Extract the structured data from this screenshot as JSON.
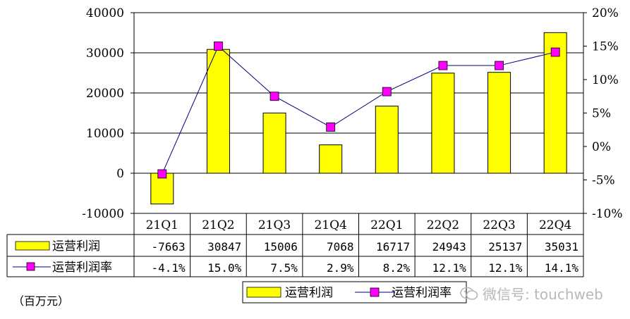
{
  "chart_data": {
    "type": "bar",
    "categories": [
      "21Q1",
      "21Q2",
      "21Q3",
      "21Q4",
      "22Q1",
      "22Q2",
      "22Q3",
      "22Q4"
    ],
    "series": [
      {
        "name": "运营利润",
        "kind": "bar",
        "axis": "left",
        "color": "#FFFF00",
        "values": [
          -7663,
          30847,
          15006,
          7068,
          16717,
          24943,
          25137,
          35031
        ],
        "table_values": [
          "-7663",
          "30847",
          "15006",
          "7068",
          "16717",
          "24943",
          "25137",
          "35031"
        ]
      },
      {
        "name": "运营利润率",
        "kind": "line",
        "axis": "right",
        "color": "#FF00FF",
        "line_color": "#000080",
        "values": [
          -4.1,
          15.0,
          7.5,
          2.9,
          8.2,
          12.1,
          12.1,
          14.1
        ],
        "table_values": [
          "-4.1%",
          "15.0%",
          "7.5%",
          "2.9%",
          "8.2%",
          "12.1%",
          "12.1%",
          "14.1%"
        ]
      }
    ],
    "left_axis": {
      "ylim": [
        -10000,
        40000
      ],
      "ticks": [
        "-10000",
        "0",
        "10000",
        "20000",
        "30000",
        "40000"
      ],
      "tick_values": [
        -10000,
        0,
        10000,
        20000,
        30000,
        40000
      ]
    },
    "right_axis": {
      "ylim": [
        -10,
        20
      ],
      "ticks": [
        "-10%",
        "-5%",
        "0%",
        "5%",
        "10%",
        "15%",
        "20%"
      ],
      "tick_values": [
        -10,
        -5,
        0,
        5,
        10,
        15,
        20
      ]
    },
    "grid": true,
    "legend_position": "bottom-right",
    "legend": [
      "运营利润",
      "运营利润率"
    ],
    "unit_label": "（百万元）"
  },
  "watermark": {
    "text": "微信号: touchweb",
    "icon": "wechat-icon"
  }
}
